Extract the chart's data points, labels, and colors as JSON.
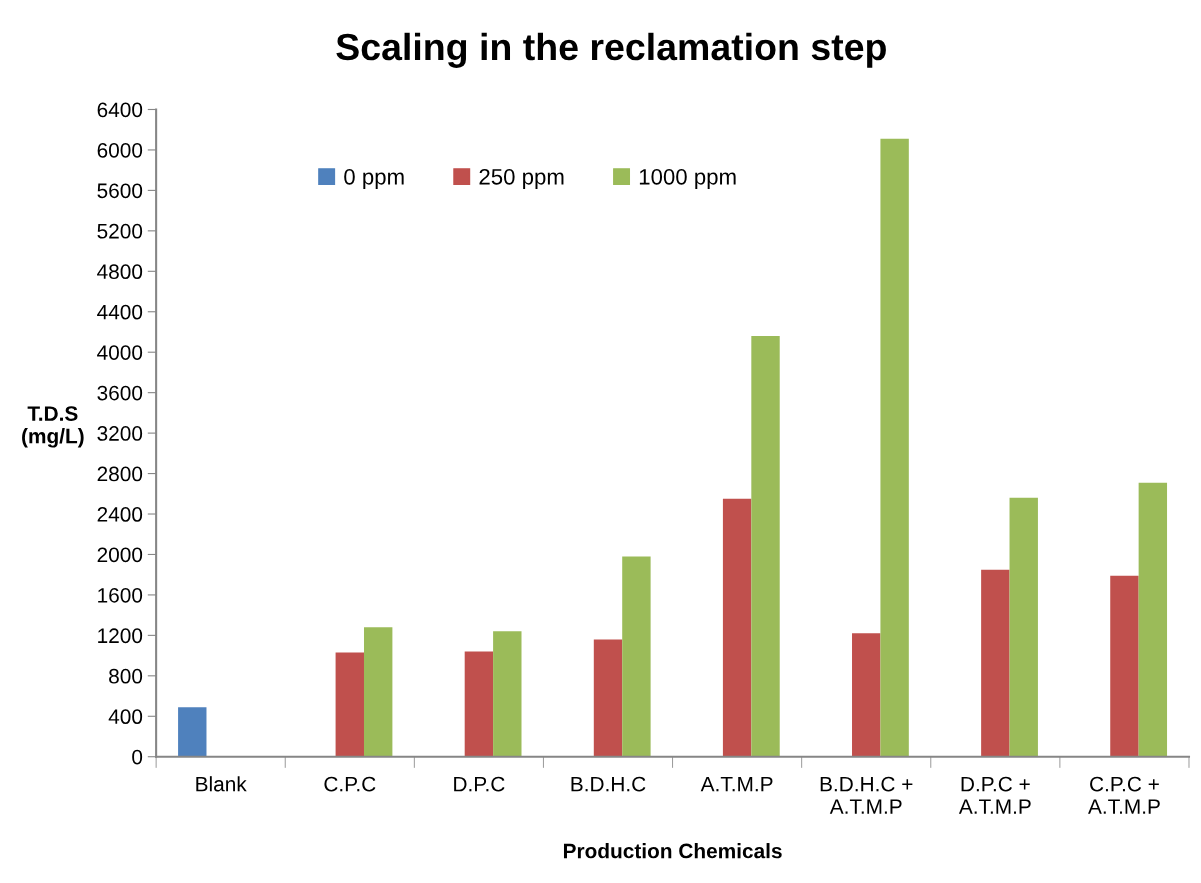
{
  "chart_data": {
    "type": "bar",
    "title": "Scaling in the reclamation step",
    "xlabel": "Production Chemicals",
    "ylabel": "T.D.S\n(mg/L)",
    "categories": [
      "Blank",
      "C.P.C",
      "D.P.C",
      "B.D.H.C",
      "A.T.M.P",
      "B.D.H.C +\nA.T.M.P",
      "D.P.C +\nA.T.M.P",
      "C.P.C +\nA.T.M.P"
    ],
    "series": [
      {
        "name": "0 ppm",
        "color": "#4f81bd",
        "values": [
          490,
          null,
          null,
          null,
          null,
          null,
          null,
          null
        ]
      },
      {
        "name": "250 ppm",
        "color": "#c0504d",
        "values": [
          null,
          1030,
          1040,
          1160,
          2550,
          1220,
          1850,
          1790
        ]
      },
      {
        "name": "1000 ppm",
        "color": "#9bbb59",
        "values": [
          null,
          1280,
          1240,
          1980,
          4160,
          6110,
          2560,
          2710
        ]
      }
    ],
    "ylim": [
      0,
      6400
    ],
    "yticks": [
      0,
      400,
      800,
      1200,
      1600,
      2000,
      2400,
      2800,
      3200,
      3600,
      4000,
      4400,
      4800,
      5200,
      5600,
      6000,
      6400
    ],
    "grid": false,
    "legend": "top"
  }
}
